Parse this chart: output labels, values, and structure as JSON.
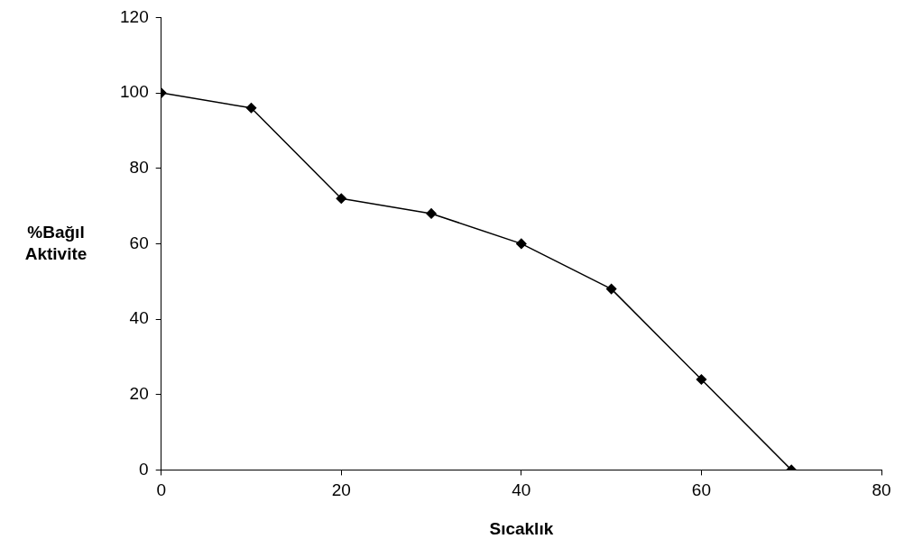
{
  "chart_data": {
    "type": "line",
    "xlabel": "Sıcaklık",
    "ylabel": "%Bağıl Aktivite",
    "x": [
      0,
      10,
      20,
      30,
      40,
      50,
      60,
      70
    ],
    "series": [
      {
        "color": "#000000",
        "values": [
          100,
          96,
          72,
          68,
          60,
          48,
          24,
          0
        ]
      }
    ],
    "xlim": [
      0,
      80
    ],
    "xticks": [
      0,
      20,
      40,
      60,
      80
    ],
    "ylim": [
      0,
      120
    ],
    "yticks": [
      0,
      20,
      40,
      60,
      80,
      100,
      120
    ],
    "grid": false,
    "legend": false,
    "marker": "diamond",
    "line_style": "solid"
  }
}
